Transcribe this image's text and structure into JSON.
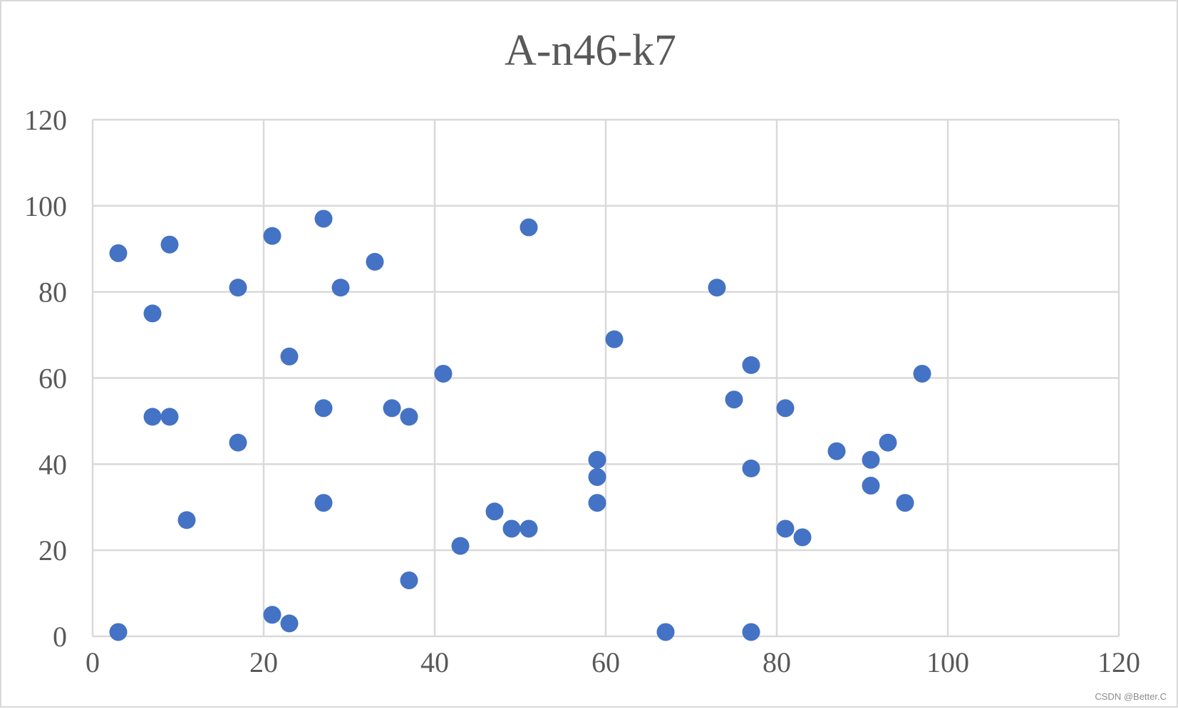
{
  "chart_data": {
    "type": "scatter",
    "title": "A-n46-k7",
    "xlabel": "",
    "ylabel": "",
    "xlim": [
      0,
      120
    ],
    "ylim": [
      0,
      120
    ],
    "xticks": [
      0,
      20,
      40,
      60,
      80,
      100,
      120
    ],
    "yticks": [
      0,
      20,
      40,
      60,
      80,
      100,
      120
    ],
    "grid": true,
    "legend": "none",
    "marker_color": "#4472C4",
    "grid_color": "#d9d9d9",
    "series": [
      {
        "points": [
          [
            3,
            89
          ],
          [
            9,
            91
          ],
          [
            7,
            75
          ],
          [
            17,
            81
          ],
          [
            21,
            93
          ],
          [
            27,
            97
          ],
          [
            33,
            87
          ],
          [
            29,
            81
          ],
          [
            51,
            95
          ],
          [
            23,
            65
          ],
          [
            41,
            61
          ],
          [
            61,
            69
          ],
          [
            73,
            81
          ],
          [
            77,
            63
          ],
          [
            97,
            61
          ],
          [
            75,
            55
          ],
          [
            81,
            53
          ],
          [
            7,
            51
          ],
          [
            9,
            51
          ],
          [
            27,
            53
          ],
          [
            35,
            53
          ],
          [
            37,
            51
          ],
          [
            17,
            45
          ],
          [
            59,
            41
          ],
          [
            59,
            37
          ],
          [
            87,
            43
          ],
          [
            91,
            41
          ],
          [
            93,
            45
          ],
          [
            77,
            39
          ],
          [
            91,
            35
          ],
          [
            27,
            31
          ],
          [
            59,
            31
          ],
          [
            95,
            31
          ],
          [
            11,
            27
          ],
          [
            47,
            29
          ],
          [
            49,
            25
          ],
          [
            51,
            25
          ],
          [
            81,
            25
          ],
          [
            83,
            23
          ],
          [
            43,
            21
          ],
          [
            37,
            13
          ],
          [
            21,
            5
          ],
          [
            23,
            3
          ],
          [
            3,
            1
          ],
          [
            67,
            1
          ],
          [
            77,
            1
          ]
        ]
      }
    ]
  },
  "watermark": "CSDN @Better.C"
}
